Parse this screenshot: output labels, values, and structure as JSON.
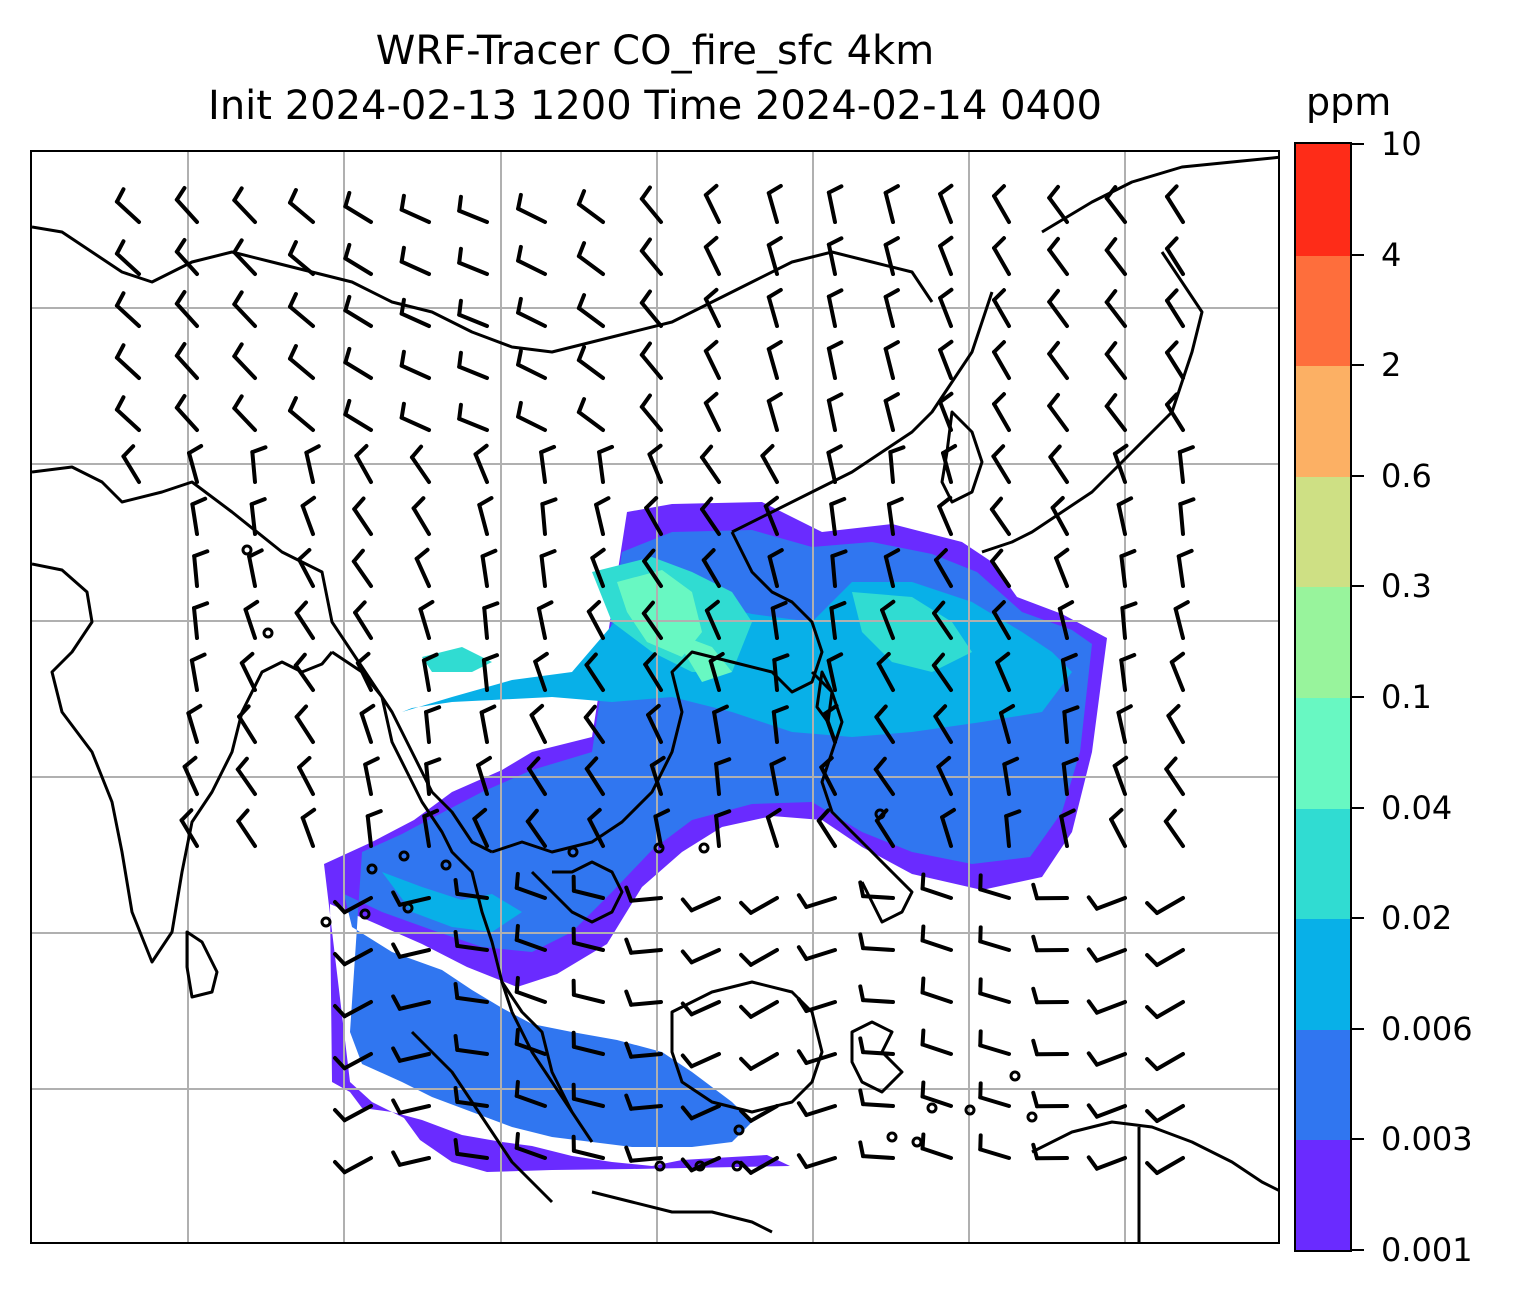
{
  "title": {
    "line1": "WRF-Tracer CO_fire_sfc 4km",
    "line2": "Init 2024-02-13 1200 Time 2024-02-14 0400"
  },
  "colorbar": {
    "unit": "ppm",
    "levels": [
      "0.001",
      "0.003",
      "0.006",
      "0.02",
      "0.04",
      "0.1",
      "0.3",
      "0.6",
      "2",
      "4",
      "10"
    ],
    "colors": [
      "#6a2bff",
      "#3076f0",
      "#08b0e8",
      "#30dcd2",
      "#68f8c2",
      "#98f49c",
      "#cee084",
      "#fcb064",
      "#fe6e3c",
      "#fe2c18"
    ]
  },
  "map": {
    "gridlines": true,
    "coastline_color": "#000000",
    "wind_barb_color": "#000000"
  }
}
